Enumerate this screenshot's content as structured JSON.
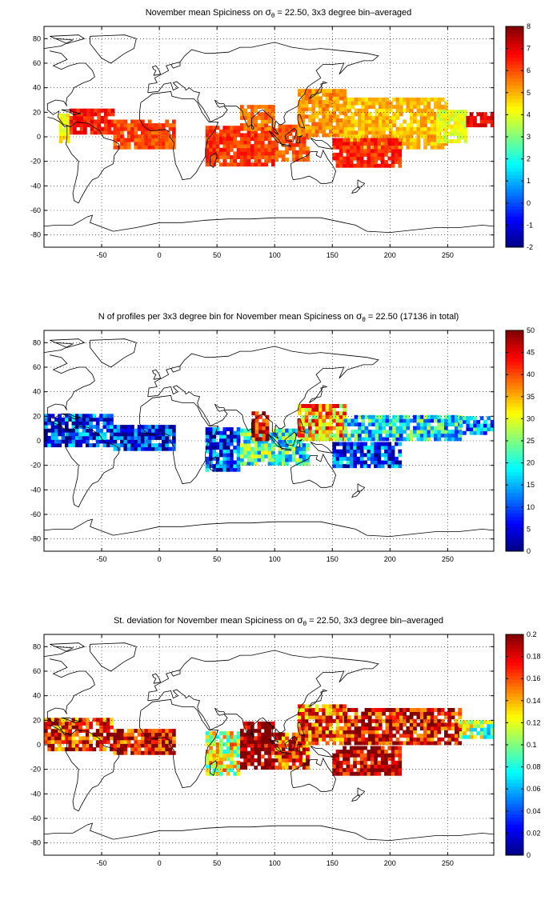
{
  "chart_data": [
    {
      "type": "heatmap",
      "title_parts": [
        "November mean Spiciness on ",
        "σ",
        "θ",
        " = 22.50, 3x3 degree bin–averaged"
      ],
      "x_ticks": [
        -50,
        0,
        50,
        100,
        150,
        200,
        250
      ],
      "y_ticks": [
        80,
        60,
        40,
        20,
        0,
        -20,
        -40,
        -60,
        -80
      ],
      "xlim": [
        -100,
        290
      ],
      "ylim": [
        -90,
        90
      ],
      "grid": true,
      "colorbar": {
        "ticks": [
          8,
          7,
          6,
          5,
          4,
          3,
          2,
          1,
          0,
          -1,
          -2
        ],
        "range": [
          -2,
          8
        ]
      },
      "regions": [
        {
          "lon": [
            -87,
            -78
          ],
          "lat": [
            -5,
            18
          ],
          "value": 4.3
        },
        {
          "lon": [
            -78,
            -40
          ],
          "lat": [
            2,
            22
          ],
          "value": 6.5
        },
        {
          "lon": [
            -40,
            12
          ],
          "lat": [
            -10,
            14
          ],
          "value": 6.0
        },
        {
          "lon": [
            40,
            100
          ],
          "lat": [
            -24,
            8
          ],
          "value": 6.2
        },
        {
          "lon": [
            70,
            100
          ],
          "lat": [
            5,
            24
          ],
          "value": 5.7
        },
        {
          "lon": [
            100,
            130
          ],
          "lat": [
            -20,
            8
          ],
          "value": 5.9
        },
        {
          "lon": [
            120,
            160
          ],
          "lat": [
            0,
            38
          ],
          "value": 5.3
        },
        {
          "lon": [
            160,
            250
          ],
          "lat": [
            -10,
            30
          ],
          "value": 4.9
        },
        {
          "lon": [
            150,
            210
          ],
          "lat": [
            -25,
            -3
          ],
          "value": 6.4
        },
        {
          "lon": [
            240,
            265
          ],
          "lat": [
            -5,
            20
          ],
          "value": 4.0
        },
        {
          "lon": [
            266,
            290
          ],
          "lat": [
            8,
            20
          ],
          "value": 6.9
        }
      ]
    },
    {
      "type": "heatmap",
      "title_parts": [
        "N of profiles per 3x3 degree bin for November mean Spiciness on ",
        "σ",
        "θ",
        " = 22.50 (17136 in total)"
      ],
      "x_ticks": [
        -50,
        0,
        50,
        100,
        150,
        200,
        250
      ],
      "y_ticks": [
        80,
        60,
        40,
        20,
        0,
        -20,
        -40,
        -60,
        -80
      ],
      "xlim": [
        -100,
        290
      ],
      "ylim": [
        -90,
        90
      ],
      "grid": true,
      "colorbar": {
        "ticks": [
          50,
          45,
          40,
          35,
          30,
          25,
          20,
          15,
          10,
          5,
          0
        ],
        "range": [
          0,
          50
        ]
      },
      "regions": [
        {
          "lon": [
            -100,
            -40
          ],
          "lat": [
            -5,
            22
          ],
          "value": 8
        },
        {
          "lon": [
            -40,
            12
          ],
          "lat": [
            -8,
            12
          ],
          "value": 6
        },
        {
          "lon": [
            40,
            70
          ],
          "lat": [
            -25,
            10
          ],
          "value": 9
        },
        {
          "lon": [
            70,
            100
          ],
          "lat": [
            -20,
            8
          ],
          "value": 22
        },
        {
          "lon": [
            80,
            95
          ],
          "lat": [
            0,
            24
          ],
          "value": 45
        },
        {
          "lon": [
            100,
            130
          ],
          "lat": [
            -20,
            8
          ],
          "value": 20
        },
        {
          "lon": [
            120,
            160
          ],
          "lat": [
            0,
            30
          ],
          "value": 35
        },
        {
          "lon": [
            160,
            260
          ],
          "lat": [
            0,
            20
          ],
          "value": 18
        },
        {
          "lon": [
            150,
            210
          ],
          "lat": [
            -22,
            -3
          ],
          "value": 10
        },
        {
          "lon": [
            260,
            290
          ],
          "lat": [
            5,
            20
          ],
          "value": 14
        }
      ]
    },
    {
      "type": "heatmap",
      "title_parts": [
        "St. deviation for November mean Spiciness on ",
        "σ",
        "θ",
        " = 22.50, 3x3 degree bin–averaged"
      ],
      "x_ticks": [
        -50,
        0,
        50,
        100,
        150,
        200,
        250
      ],
      "y_ticks": [
        80,
        60,
        40,
        20,
        0,
        -20,
        -40,
        -60,
        -80
      ],
      "xlim": [
        -100,
        290
      ],
      "ylim": [
        -90,
        90
      ],
      "grid": true,
      "colorbar": {
        "ticks": [
          0.2,
          0.18,
          0.16,
          0.14,
          0.12,
          0.1,
          0.08,
          0.06,
          0.04,
          0.02,
          0
        ],
        "range": [
          0,
          0.2
        ]
      },
      "regions": [
        {
          "lon": [
            -100,
            -40
          ],
          "lat": [
            -5,
            22
          ],
          "value": 0.17
        },
        {
          "lon": [
            -40,
            12
          ],
          "lat": [
            -8,
            12
          ],
          "value": 0.18
        },
        {
          "lon": [
            40,
            70
          ],
          "lat": [
            -25,
            10
          ],
          "value": 0.12
        },
        {
          "lon": [
            70,
            100
          ],
          "lat": [
            -20,
            18
          ],
          "value": 0.2
        },
        {
          "lon": [
            100,
            130
          ],
          "lat": [
            -20,
            8
          ],
          "value": 0.17
        },
        {
          "lon": [
            120,
            160
          ],
          "lat": [
            0,
            32
          ],
          "value": 0.16
        },
        {
          "lon": [
            160,
            260
          ],
          "lat": [
            0,
            30
          ],
          "value": 0.18
        },
        {
          "lon": [
            150,
            210
          ],
          "lat": [
            -25,
            -3
          ],
          "value": 0.19
        },
        {
          "lon": [
            260,
            290
          ],
          "lat": [
            5,
            20
          ],
          "value": 0.1
        }
      ]
    }
  ]
}
